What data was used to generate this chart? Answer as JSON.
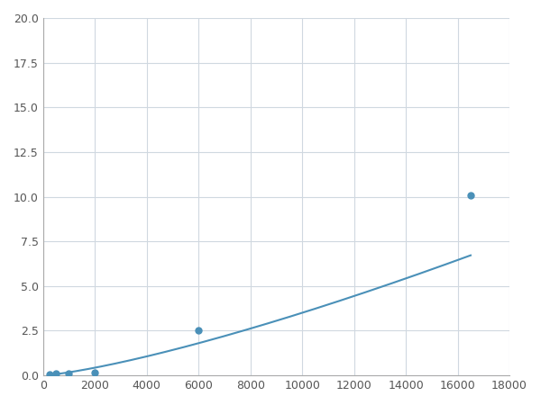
{
  "x": [
    250,
    500,
    1000,
    2000,
    6000,
    16500
  ],
  "y": [
    0.05,
    0.1,
    0.1,
    0.15,
    2.5,
    10.1
  ],
  "line_color": "#4a90b8",
  "marker_color": "#4a90b8",
  "marker_size": 5,
  "line_width": 1.5,
  "xlim": [
    0,
    18000
  ],
  "ylim": [
    0,
    20
  ],
  "xticks": [
    0,
    2000,
    4000,
    6000,
    8000,
    10000,
    12000,
    14000,
    16000,
    18000
  ],
  "yticks": [
    0.0,
    2.5,
    5.0,
    7.5,
    10.0,
    12.5,
    15.0,
    17.5,
    20.0
  ],
  "grid_color": "#d0d8e0",
  "background_color": "#ffffff",
  "figsize": [
    6.0,
    4.5
  ],
  "dpi": 100
}
